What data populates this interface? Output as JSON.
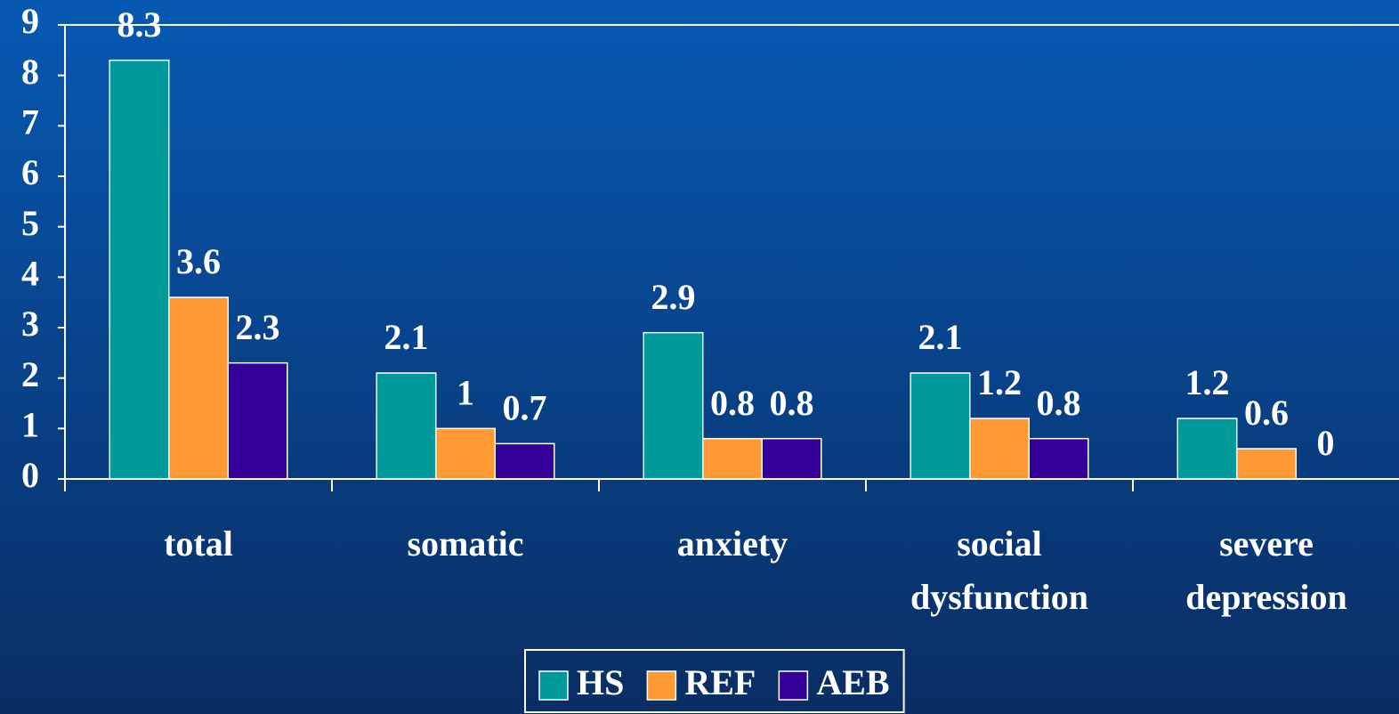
{
  "chart_data": {
    "type": "bar",
    "categories": [
      "total",
      "somatic",
      "anxiety",
      "social dysfunction",
      "severe depression"
    ],
    "series": [
      {
        "name": "HS",
        "color": "#009999",
        "values": [
          8.3,
          2.1,
          2.9,
          2.1,
          1.2
        ]
      },
      {
        "name": "REF",
        "color": "#ff9933",
        "values": [
          3.6,
          1,
          0.8,
          1.2,
          0.6
        ]
      },
      {
        "name": "AEB",
        "color": "#330099",
        "values": [
          2.3,
          0.7,
          0.8,
          0.8,
          0
        ]
      }
    ],
    "ylim": [
      0,
      9
    ],
    "yticks": [
      0,
      1,
      2,
      3,
      4,
      5,
      6,
      7,
      8,
      9
    ],
    "legend": "bottom"
  }
}
